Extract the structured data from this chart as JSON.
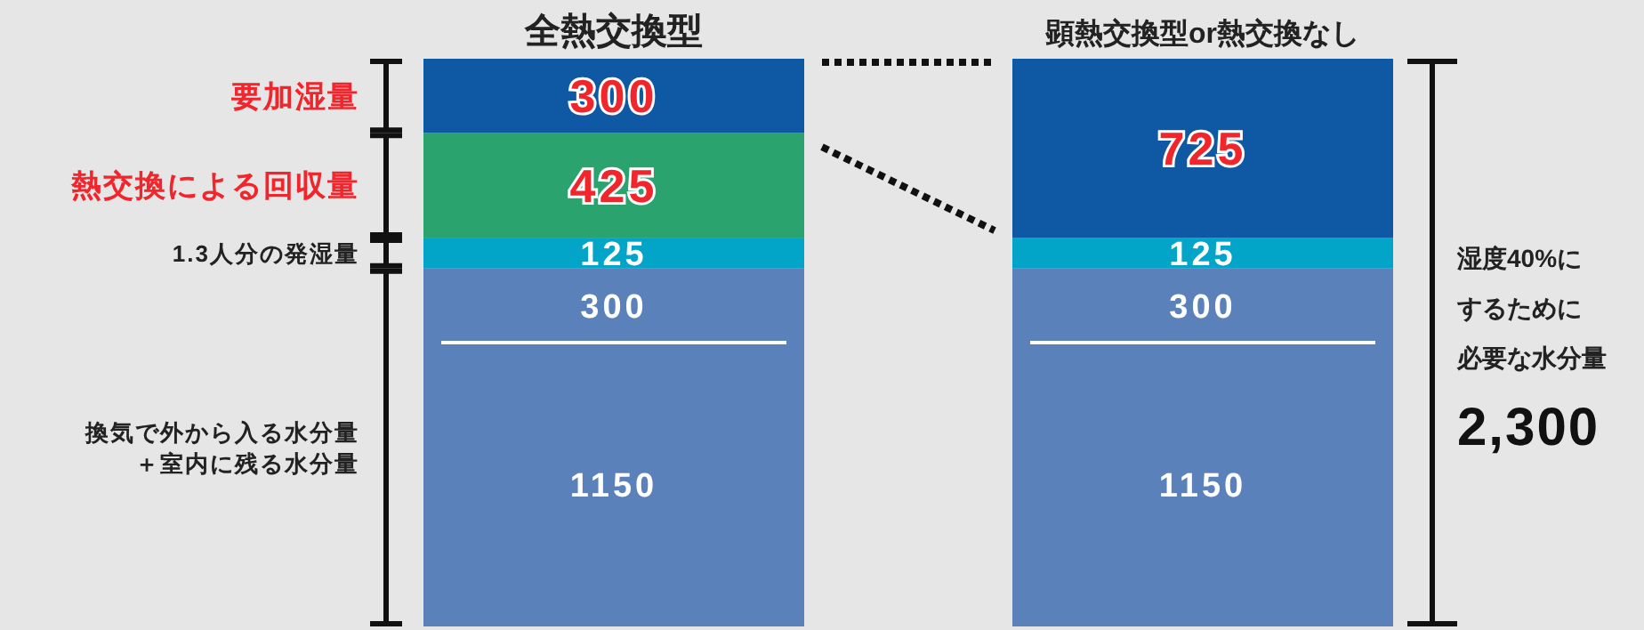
{
  "chart_data": {
    "type": "bar",
    "stacked": true,
    "data_labels": true,
    "categories": [
      "全熱交換型",
      "顕熱交換型or熱交換なし"
    ],
    "series": [
      {
        "name": "換気で外から入る水分量＋室内に残る水分量",
        "color": "#5a81ba",
        "values": [
          1150,
          1150
        ]
      },
      {
        "color": "#5a81ba",
        "values": [
          300,
          300
        ]
      },
      {
        "name": "1.3人分の発湿量",
        "color": "#02a4c8",
        "values": [
          125,
          125
        ]
      },
      {
        "name": "熱交換による回収量",
        "color": "#2aa36f",
        "values": [
          425,
          null
        ]
      },
      {
        "name": "要加湿量",
        "color": "#0e58a4",
        "values": [
          300,
          725
        ]
      }
    ],
    "totals": [
      null,
      "2,300"
    ],
    "annotations": [
      "湿度40%に",
      "するために",
      "必要な水分量"
    ]
  }
}
